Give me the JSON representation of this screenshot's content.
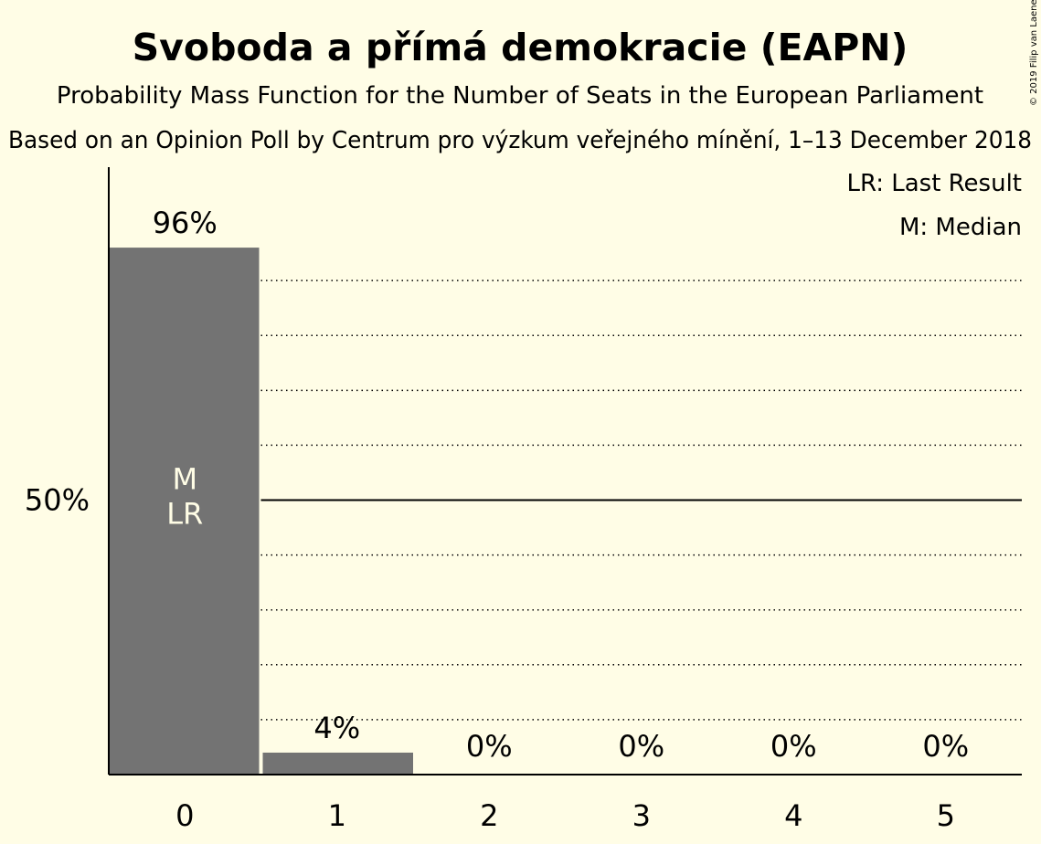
{
  "title": "Svoboda a přímá demokracie (EAPN)",
  "subtitle": "Probability Mass Function for the Number of Seats in the European Parliament",
  "source": "Based on an Opinion Poll by Centrum pro výzkum veřejného mínění, 1–13 December 2018",
  "copyright": "© 2019 Filip van Laenen",
  "legend": {
    "last_result": "LR: Last Result",
    "median": "M: Median"
  },
  "colors": {
    "background": "#FFFDE6",
    "bar": "#737373",
    "axis": "#000000",
    "annotation_text": "#FFFDE6"
  },
  "chart_data": {
    "type": "bar",
    "categories": [
      "0",
      "1",
      "2",
      "3",
      "4",
      "5"
    ],
    "values": [
      96,
      4,
      0,
      0,
      0,
      0
    ],
    "data_labels": [
      "96%",
      "4%",
      "0%",
      "0%",
      "0%",
      "0%"
    ],
    "ylim": [
      0,
      105
    ],
    "y_ticks": [
      {
        "value": 50,
        "label": "50%"
      }
    ],
    "gridlines_dotted": [
      10,
      20,
      30,
      40,
      60,
      70,
      80,
      90
    ],
    "gridline_solid": 50,
    "bar_annotations": [
      {
        "category": "0",
        "lines": [
          "M",
          "LR"
        ]
      }
    ],
    "title": "Svoboda a přímá demokracie (EAPN)",
    "xlabel": "",
    "ylabel": "",
    "legend_position": "top-right",
    "grid": true
  }
}
